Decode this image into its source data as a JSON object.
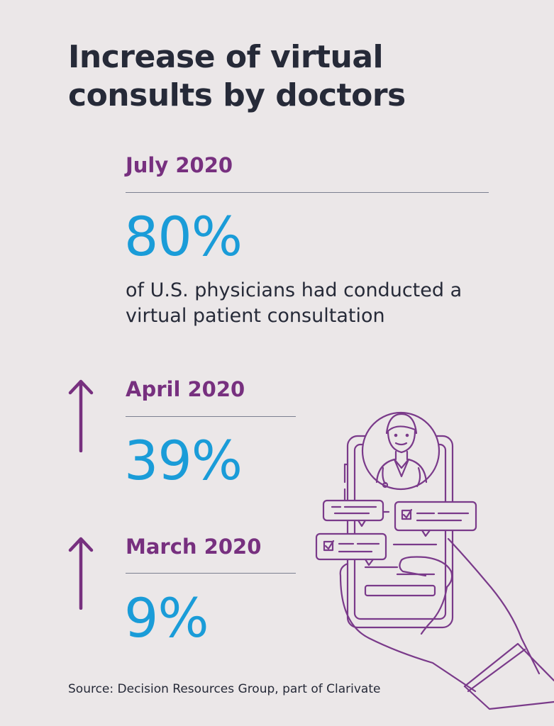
{
  "title": {
    "line1": "Increase of virtual",
    "line2": "consults by doctors"
  },
  "entries": [
    {
      "period": "July 2020",
      "value": "80%",
      "description_line1": "of U.S. physicians had conducted a",
      "description_line2": "virtual patient consultation"
    },
    {
      "period": "April 2020",
      "value": "39%",
      "trend": "up-arrow-icon"
    },
    {
      "period": "March 2020",
      "value": "9%",
      "trend": "up-arrow-icon"
    }
  ],
  "source": "Source: Decision Resources Group, part of Clarivate",
  "colors": {
    "background": "#ebe7e8",
    "title": "#262a38",
    "period": "#77307f",
    "value": "#1a9cd8",
    "line_art": "#7a3a8a"
  },
  "illustration": "phone-doctor-consult-icon"
}
